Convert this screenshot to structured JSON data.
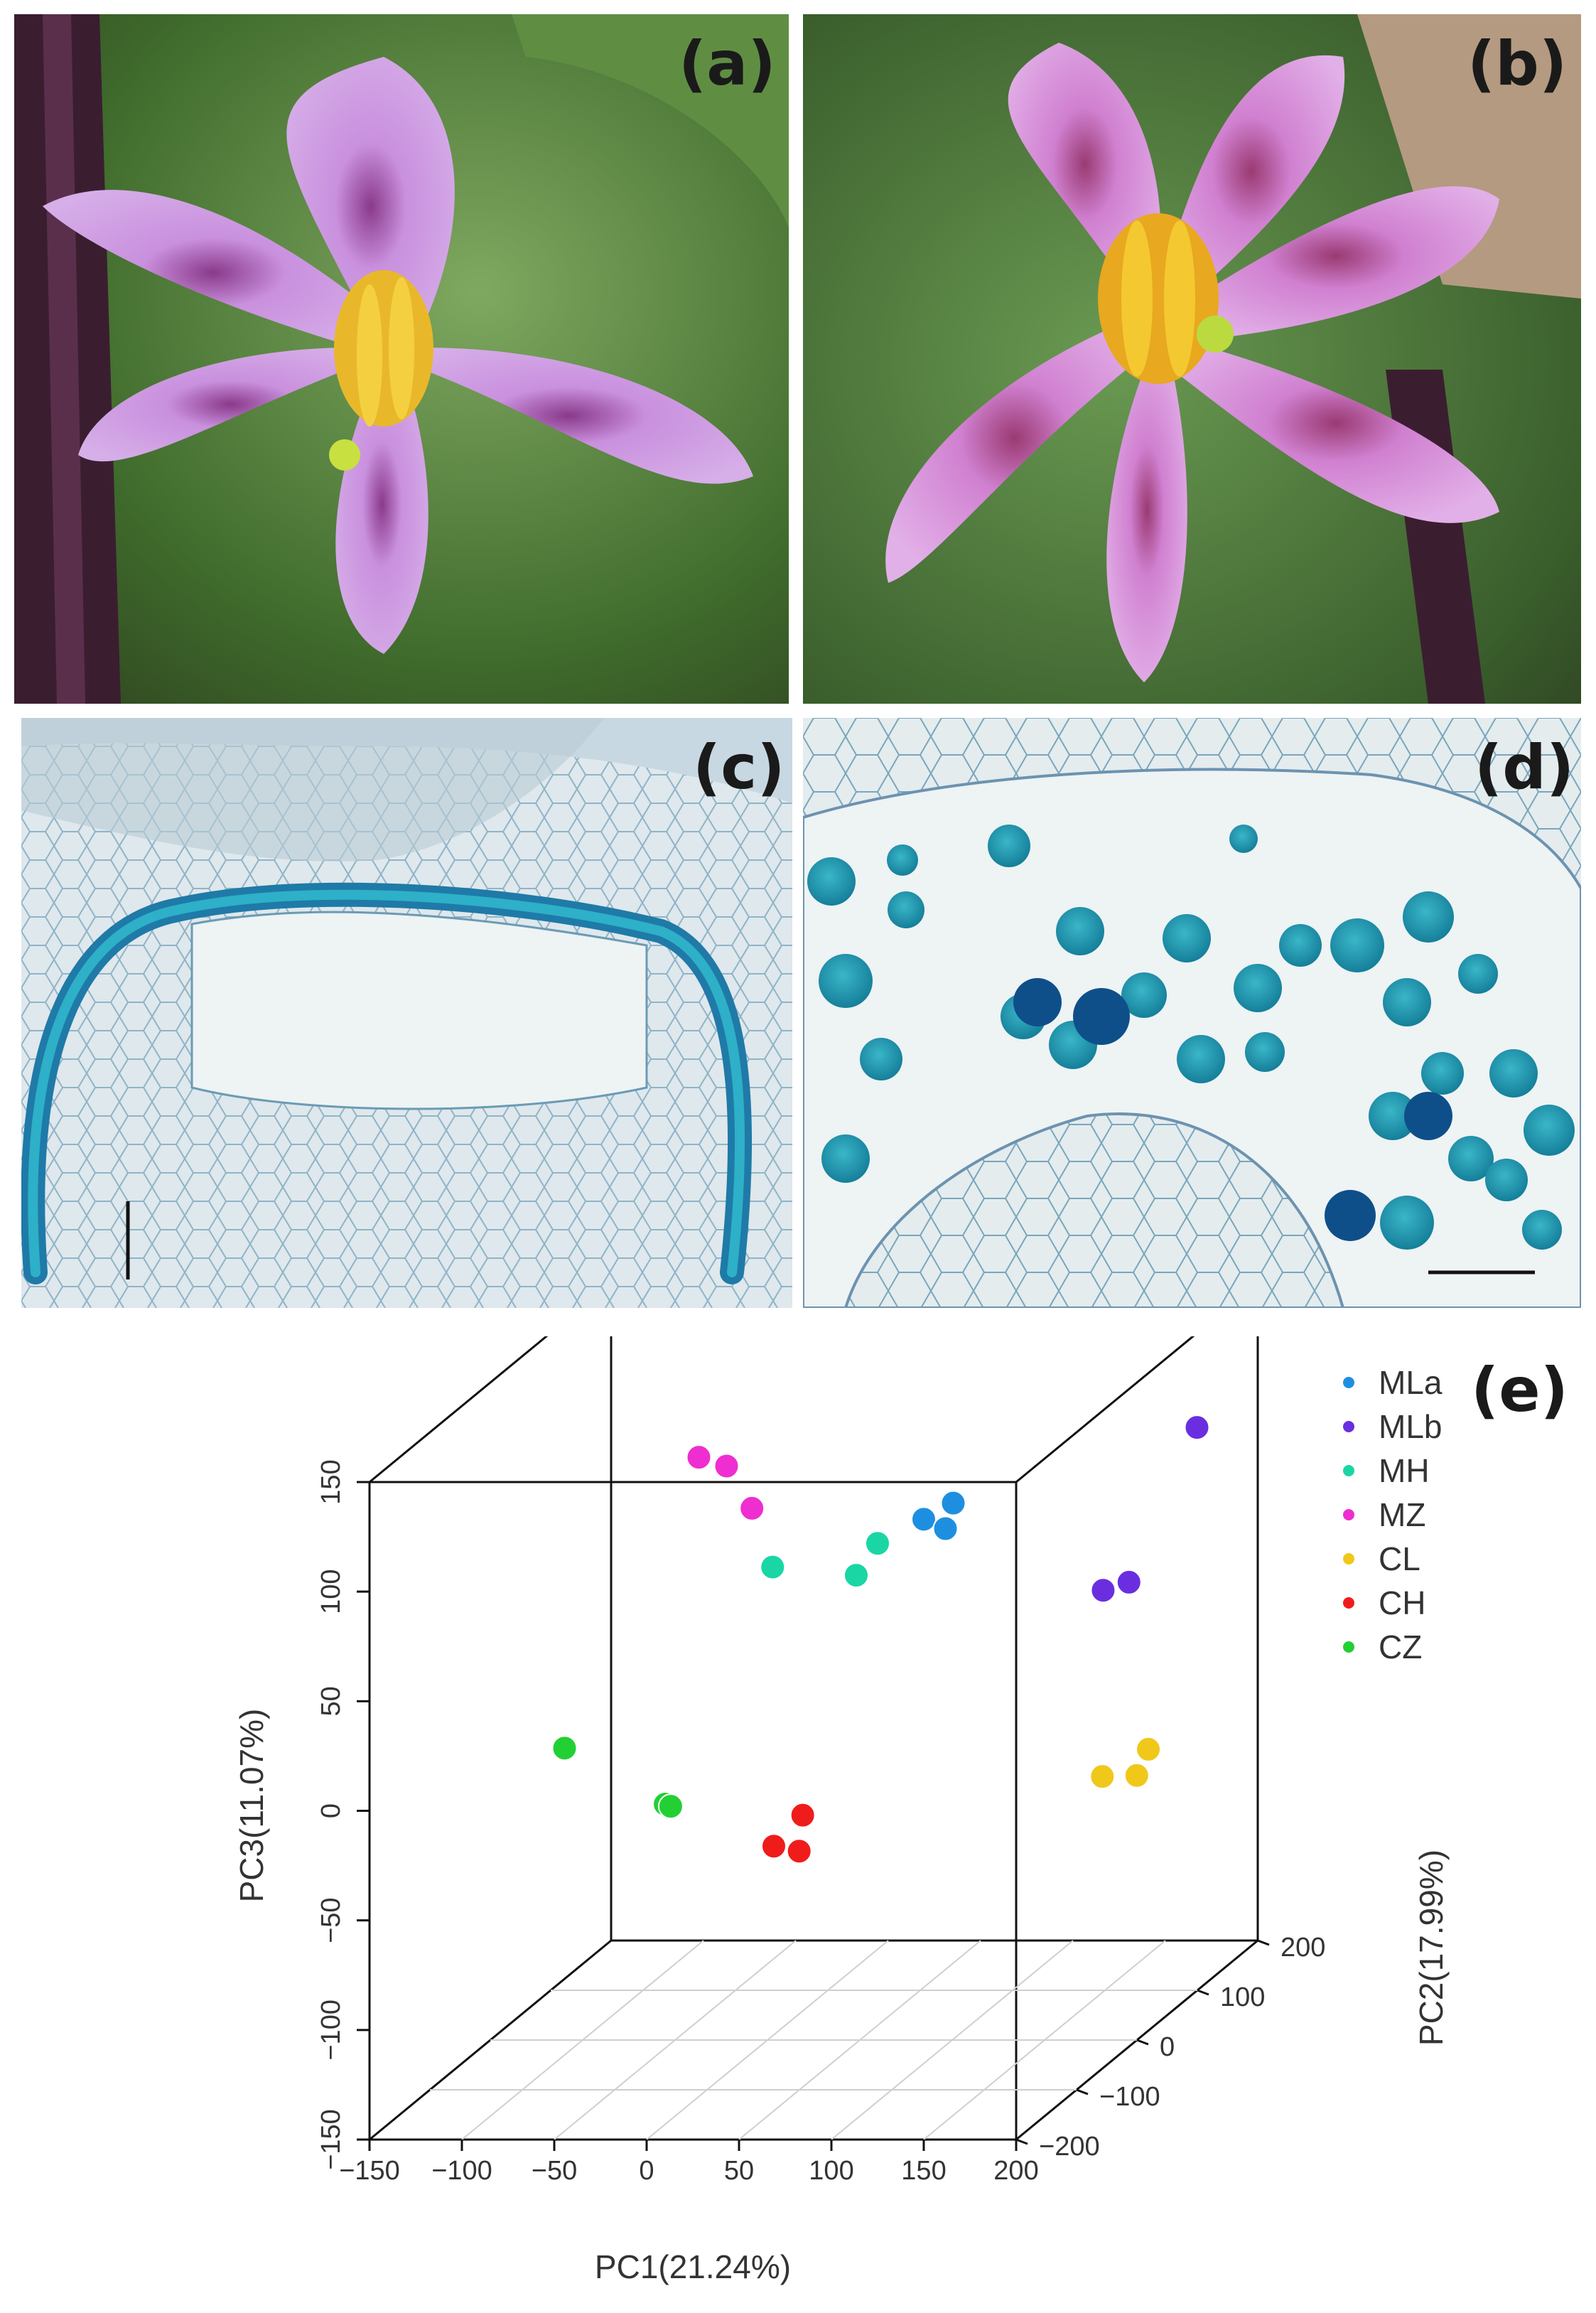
{
  "figure": {
    "panels": [
      {
        "label": "(a)",
        "content": "photo-flower-a"
      },
      {
        "label": "(b)",
        "content": "photo-flower-b"
      },
      {
        "label": "(c)",
        "content": "micrograph-anther-wall"
      },
      {
        "label": "(d)",
        "content": "micrograph-pollen-grains"
      }
    ],
    "panel_e_label": "(e)",
    "colors": {
      "MLa": "#1e8fe0",
      "MLb": "#6a2ee0",
      "MH": "#1ad6a4",
      "MZ": "#ee2ed0",
      "CL": "#f0c81a",
      "CH": "#f01c1c",
      "CZ": "#22d034",
      "petal": "#c98fe0",
      "stain": "#2a9fbf"
    }
  },
  "chart_data": {
    "type": "scatter",
    "dimensions": 3,
    "xlabel": "PC1(21.24%)",
    "ylabel": "PC2(17.99%)",
    "zlabel": "PC3(11.07%)",
    "xlim": [
      -150,
      200
    ],
    "ylim": [
      -200,
      200
    ],
    "zlim": [
      -150,
      150
    ],
    "x_ticks": [
      "-150",
      "-100",
      "-50",
      "0",
      "50",
      "100",
      "150",
      "200"
    ],
    "y_ticks": [
      "-200",
      "-100",
      "0",
      "100",
      "200"
    ],
    "z_ticks": [
      "-150",
      "-100",
      "-50",
      "0",
      "50",
      "100",
      "150"
    ],
    "legend_position": "top-right",
    "series": [
      {
        "name": "MLa",
        "color": "#1e8fe0",
        "points": [
          [
            65,
            60,
            74
          ],
          [
            79,
            66,
            80
          ],
          [
            80,
            50,
            72
          ]
        ]
      },
      {
        "name": "MLb",
        "color": "#6a2ee0",
        "points": [
          [
            190,
            130,
            100
          ],
          [
            167,
            45,
            45
          ],
          [
            180,
            48,
            48
          ]
        ]
      },
      {
        "name": "MH",
        "color": "#1ad6a4",
        "points": [
          [
            -7,
            30,
            59
          ],
          [
            40,
            60,
            63
          ],
          [
            35,
            40,
            53
          ]
        ]
      },
      {
        "name": "MZ",
        "color": "#ee2ed0",
        "points": [
          [
            -60,
            70,
            100
          ],
          [
            -45,
            70,
            96
          ],
          [
            -28,
            60,
            79
          ]
        ]
      },
      {
        "name": "CL",
        "color": "#f0c81a",
        "points": [
          [
            178,
            10,
            -32
          ],
          [
            198,
            25,
            -23
          ],
          [
            196,
            12,
            -32
          ]
        ]
      },
      {
        "name": "CH",
        "color": "#f01c1c",
        "points": [
          [
            10,
            -20,
            -57
          ],
          [
            24,
            -15,
            -44
          ],
          [
            27,
            -30,
            -57
          ]
        ]
      },
      {
        "name": "CZ",
        "color": "#22d034",
        "points": [
          [
            -100,
            -30,
            -10
          ],
          [
            -39,
            -50,
            -31
          ],
          [
            -36,
            -50,
            -32
          ]
        ]
      }
    ]
  }
}
